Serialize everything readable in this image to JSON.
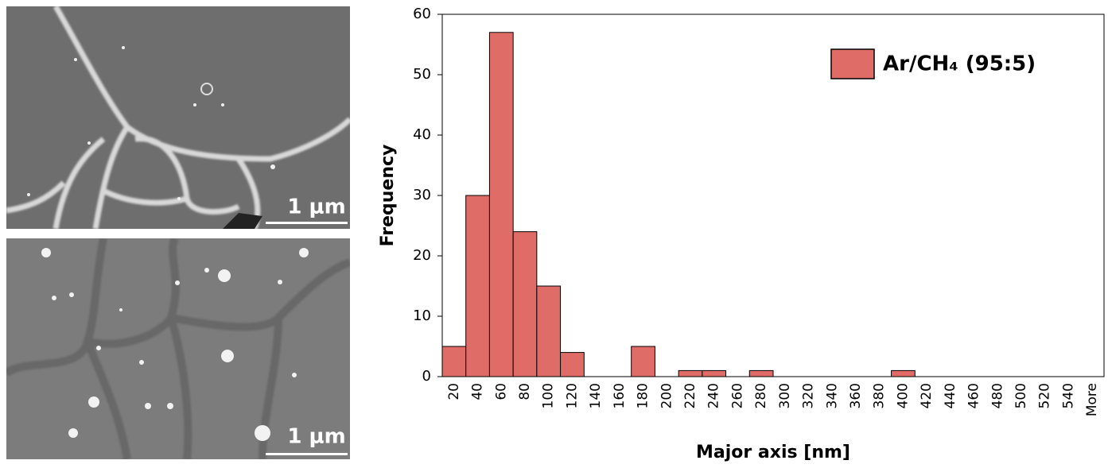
{
  "images": [
    {
      "scale_label": "1 μm"
    },
    {
      "scale_label": "1 μm"
    }
  ],
  "chart_data": {
    "type": "bar",
    "x_label": "Major axis [nm]",
    "y_label": "Frequency",
    "categories": [
      "20",
      "40",
      "60",
      "80",
      "100",
      "120",
      "140",
      "160",
      "180",
      "200",
      "220",
      "240",
      "260",
      "280",
      "300",
      "320",
      "340",
      "360",
      "380",
      "400",
      "420",
      "440",
      "460",
      "480",
      "500",
      "520",
      "540",
      "More"
    ],
    "series": [
      {
        "name": "Ar/CH₄ (95:5)",
        "color": "#e06c67",
        "values": [
          5,
          30,
          57,
          24,
          15,
          4,
          0,
          0,
          5,
          0,
          1,
          1,
          0,
          1,
          0,
          0,
          0,
          0,
          0,
          1,
          0,
          0,
          0,
          0,
          0,
          0,
          0,
          0
        ]
      }
    ],
    "ylim": [
      0,
      60
    ],
    "yticks": [
      0,
      10,
      20,
      30,
      40,
      50,
      60
    ],
    "legend": "upper right"
  }
}
